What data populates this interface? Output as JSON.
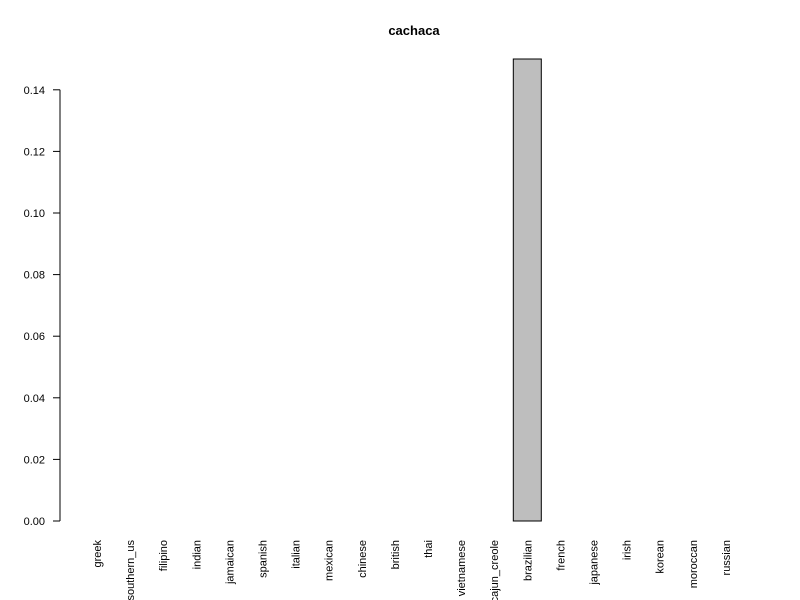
{
  "chart_data": {
    "type": "bar",
    "title": "cachaca",
    "xlabel": "",
    "ylabel": "",
    "categories": [
      "greek",
      "southern_us",
      "filipino",
      "indian",
      "jamaican",
      "spanish",
      "italian",
      "mexican",
      "chinese",
      "british",
      "thai",
      "vietnamese",
      "cajun_creole",
      "brazilian",
      "french",
      "japanese",
      "irish",
      "korean",
      "moroccan",
      "russian"
    ],
    "values": [
      0,
      0,
      0,
      0,
      0,
      0,
      0,
      0,
      0,
      0,
      0,
      0,
      0,
      0.15,
      0,
      0,
      0,
      0,
      0,
      0
    ],
    "ylim": [
      0,
      0.15
    ],
    "yticks": [
      0.0,
      0.02,
      0.04,
      0.06,
      0.08,
      0.1,
      0.12,
      0.14
    ],
    "ytick_labels": [
      "0.00",
      "0.02",
      "0.04",
      "0.06",
      "0.08",
      "0.10",
      "0.12",
      "0.14"
    ],
    "bar_color": "#bebebe",
    "grid": false,
    "legend": "none"
  }
}
